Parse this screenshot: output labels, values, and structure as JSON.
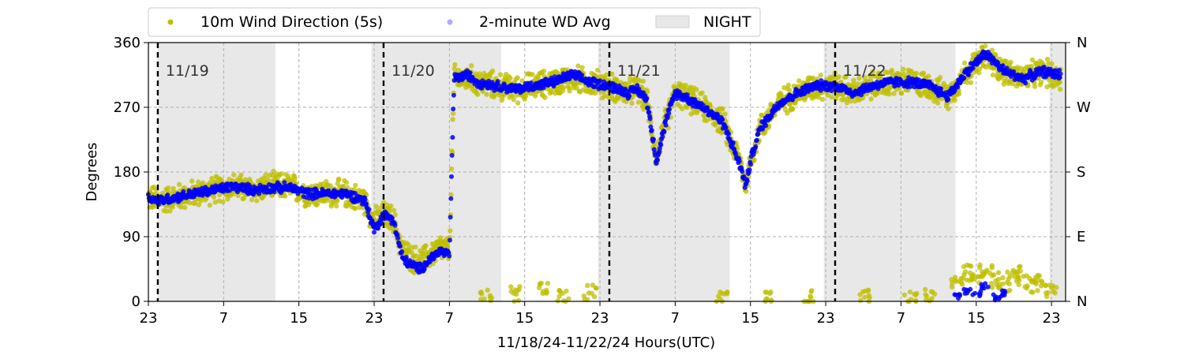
{
  "chart_data": {
    "type": "scatter",
    "title": "",
    "xlabel": "11/18/24-11/22/24  Hours(UTC)",
    "ylabel": "Degrees",
    "xlim": [
      23,
      120.5
    ],
    "ylim": [
      0,
      360
    ],
    "x_tick_values": [
      23,
      31,
      39,
      47,
      55,
      63,
      71,
      79,
      87,
      95,
      103,
      111,
      119
    ],
    "x_tick_labels": [
      "23",
      "7",
      "15",
      "23",
      "7",
      "15",
      "23",
      "7",
      "15",
      "23",
      "7",
      "15",
      "23"
    ],
    "y_ticks": [
      0,
      90,
      180,
      270,
      360
    ],
    "y_tick_labels": [
      "0",
      "90",
      "180",
      "270",
      "360"
    ],
    "right_axis_ticks": [
      0,
      90,
      180,
      270,
      360
    ],
    "right_axis_labels": [
      "N",
      "E",
      "S",
      "W",
      "N"
    ],
    "grid": true,
    "legend_placement": "top (above plot)",
    "legend": [
      {
        "label": "10m Wind Direction (5s)",
        "marker": "point",
        "color": "#bfbf00"
      },
      {
        "label": "2-minute WD Avg",
        "marker": "point",
        "color": "#0000ff"
      },
      {
        "label": "NIGHT",
        "marker": "patch",
        "color": "#e8e8e8"
      }
    ],
    "day_markers": [
      {
        "x": 24,
        "label": "11/19"
      },
      {
        "x": 48,
        "label": "11/20"
      },
      {
        "x": 72,
        "label": "11/21"
      },
      {
        "x": 96,
        "label": "11/22"
      }
    ],
    "night_spans": [
      [
        24,
        36.5
      ],
      [
        46.7,
        60.5
      ],
      [
        70.8,
        84.8
      ],
      [
        94.8,
        108.8
      ],
      [
        118.8,
        120.5
      ]
    ],
    "series": [
      {
        "name": "10m Wind Direction (5s)",
        "color": "#bfbf00",
        "spread": 22,
        "points": [
          [
            23,
            145
          ],
          [
            24,
            140
          ],
          [
            26,
            145
          ],
          [
            28,
            150
          ],
          [
            30,
            155
          ],
          [
            32,
            160
          ],
          [
            34,
            155
          ],
          [
            36,
            160
          ],
          [
            38,
            160
          ],
          [
            40,
            150
          ],
          [
            42,
            150
          ],
          [
            44,
            150
          ],
          [
            45,
            145
          ],
          [
            46,
            140
          ],
          [
            47,
            110
          ],
          [
            48,
            120
          ],
          [
            49,
            115
          ],
          [
            50,
            70
          ],
          [
            51,
            60
          ],
          [
            52,
            55
          ],
          [
            53,
            65
          ],
          [
            54,
            75
          ],
          [
            55,
            70
          ],
          [
            55.5,
            310
          ],
          [
            57,
            310
          ],
          [
            58,
            305
          ],
          [
            60,
            300
          ],
          [
            62,
            295
          ],
          [
            64,
            300
          ],
          [
            66,
            305
          ],
          [
            68,
            310
          ],
          [
            70,
            305
          ],
          [
            72,
            300
          ],
          [
            73,
            295
          ],
          [
            74,
            290
          ],
          [
            75,
            295
          ],
          [
            76,
            280
          ],
          [
            77,
            200
          ],
          [
            78,
            250
          ],
          [
            79,
            290
          ],
          [
            80,
            285
          ],
          [
            82,
            270
          ],
          [
            84,
            250
          ],
          [
            85,
            220
          ],
          [
            86,
            190
          ],
          [
            86.5,
            160
          ],
          [
            87,
            195
          ],
          [
            88,
            240
          ],
          [
            90,
            275
          ],
          [
            92,
            290
          ],
          [
            94,
            300
          ],
          [
            96,
            300
          ],
          [
            98,
            290
          ],
          [
            100,
            300
          ],
          [
            102,
            305
          ],
          [
            104,
            305
          ],
          [
            106,
            300
          ],
          [
            108,
            285
          ],
          [
            110,
            320
          ],
          [
            112,
            340
          ],
          [
            114,
            320
          ],
          [
            116,
            310
          ],
          [
            118,
            320
          ],
          [
            120,
            310
          ]
        ]
      },
      {
        "name": "2-minute WD Avg",
        "color": "#0000ff",
        "spread": 8,
        "points": [
          [
            23,
            145
          ],
          [
            24,
            140
          ],
          [
            26,
            145
          ],
          [
            28,
            150
          ],
          [
            30,
            155
          ],
          [
            32,
            160
          ],
          [
            34,
            155
          ],
          [
            36,
            158
          ],
          [
            38,
            158
          ],
          [
            40,
            150
          ],
          [
            42,
            150
          ],
          [
            44,
            150
          ],
          [
            45,
            145
          ],
          [
            46,
            140
          ],
          [
            47,
            100
          ],
          [
            48,
            120
          ],
          [
            49,
            115
          ],
          [
            50,
            60
          ],
          [
            51,
            50
          ],
          [
            52,
            45
          ],
          [
            53,
            60
          ],
          [
            54,
            70
          ],
          [
            55,
            65
          ],
          [
            55.5,
            310
          ],
          [
            57,
            315
          ],
          [
            58,
            305
          ],
          [
            60,
            300
          ],
          [
            62,
            295
          ],
          [
            64,
            300
          ],
          [
            66,
            305
          ],
          [
            68,
            315
          ],
          [
            70,
            305
          ],
          [
            72,
            300
          ],
          [
            73,
            295
          ],
          [
            74,
            290
          ],
          [
            75,
            295
          ],
          [
            76,
            280
          ],
          [
            77,
            195
          ],
          [
            78,
            250
          ],
          [
            79,
            290
          ],
          [
            80,
            285
          ],
          [
            82,
            270
          ],
          [
            84,
            250
          ],
          [
            85,
            220
          ],
          [
            86,
            185
          ],
          [
            86.5,
            160
          ],
          [
            87,
            195
          ],
          [
            88,
            240
          ],
          [
            90,
            275
          ],
          [
            92,
            290
          ],
          [
            94,
            300
          ],
          [
            96,
            300
          ],
          [
            98,
            290
          ],
          [
            100,
            300
          ],
          [
            102,
            305
          ],
          [
            104,
            305
          ],
          [
            106,
            300
          ],
          [
            108,
            285
          ],
          [
            110,
            320
          ],
          [
            112,
            345
          ],
          [
            114,
            320
          ],
          [
            116,
            310
          ],
          [
            118,
            320
          ],
          [
            120,
            315
          ]
        ]
      }
    ],
    "low_direction_scatter": [
      [
        59,
        5
      ],
      [
        62,
        10
      ],
      [
        65,
        15
      ],
      [
        67,
        8
      ],
      [
        70,
        12
      ],
      [
        84,
        3
      ],
      [
        89,
        6
      ],
      [
        93,
        4
      ],
      [
        99,
        8
      ],
      [
        104,
        5
      ],
      [
        106,
        8
      ],
      [
        109,
        30
      ],
      [
        110,
        40
      ],
      [
        111,
        35
      ],
      [
        112,
        45
      ],
      [
        113,
        30
      ],
      [
        114,
        25
      ],
      [
        115,
        40
      ],
      [
        116,
        30
      ],
      [
        117,
        20
      ],
      [
        118,
        25
      ],
      [
        119,
        15
      ]
    ],
    "blue_near_north": [
      [
        109,
        5
      ],
      [
        110,
        15
      ],
      [
        111,
        10
      ],
      [
        112,
        20
      ],
      [
        113,
        5
      ],
      [
        114,
        10
      ]
    ]
  }
}
